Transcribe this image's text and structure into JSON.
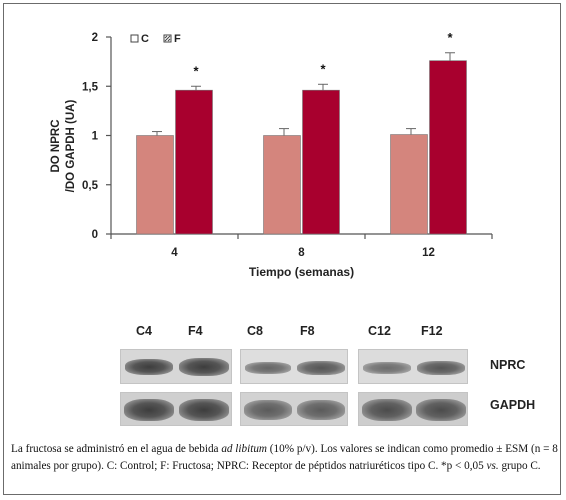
{
  "chart_data": {
    "type": "bar",
    "categories": [
      "4",
      "8",
      "12"
    ],
    "series": [
      {
        "name": "C",
        "values": [
          1.0,
          1.0,
          1.01
        ],
        "errors": [
          0.04,
          0.07,
          0.06
        ],
        "color": "#d4857d"
      },
      {
        "name": "F",
        "values": [
          1.46,
          1.46,
          1.76
        ],
        "errors": [
          0.04,
          0.06,
          0.08
        ],
        "color": "#a8002e"
      }
    ],
    "significance_marks": [
      "*",
      "*",
      "*"
    ],
    "xlabel": "Tiempo (semanas)",
    "ylabel_line1": "DO NPRC",
    "ylabel_line2": "/DO GAPDH (UA)",
    "ylim": [
      0,
      2
    ],
    "yticks": [
      0,
      0.5,
      1,
      1.5,
      2
    ],
    "ytick_labels": [
      "0",
      "0,5",
      "1",
      "1,5",
      "2"
    ],
    "legend_position": "top-left"
  },
  "blot": {
    "lane_labels": [
      "C4",
      "F4",
      "C8",
      "F8",
      "C12",
      "F12"
    ],
    "proteins": [
      "NPRC",
      "GAPDH"
    ]
  },
  "caption": {
    "part1": "La fructosa se administró en el agua de bebida ",
    "italic1": "ad libitum",
    "part2": " (10% p/v). Los valores se indican como promedio ± ESM (n = 8 animales por grupo). C: Control; F: Fructosa; NPRC: Receptor de péptidos natriuréticos tipo C. *p < 0,05 ",
    "italic2": "vs.",
    "part3": " grupo C."
  }
}
